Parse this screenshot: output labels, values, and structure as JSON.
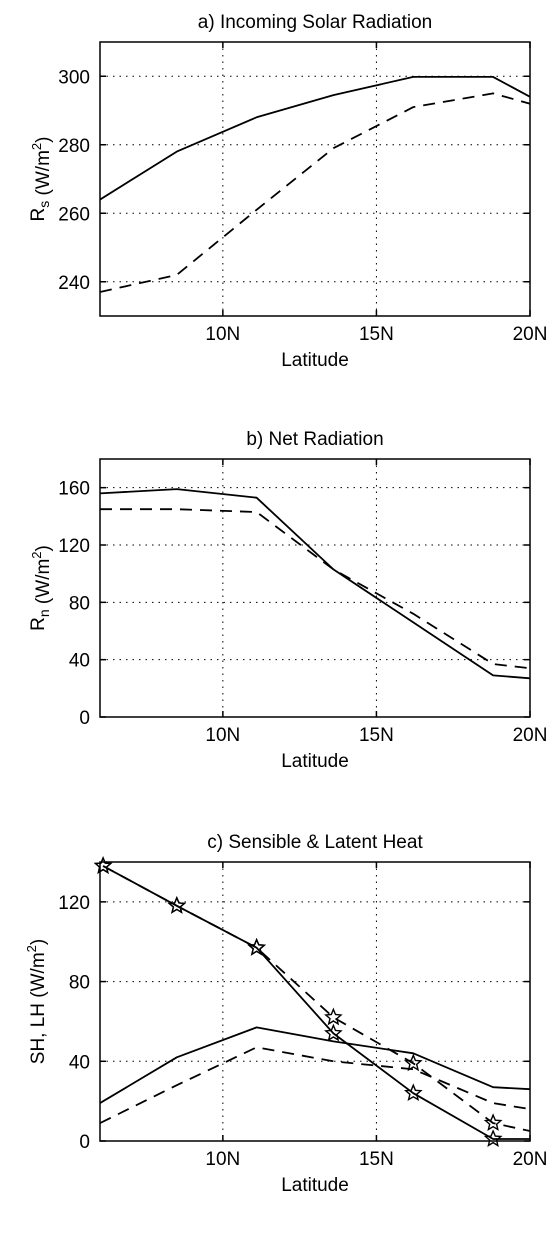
{
  "chart_data": [
    {
      "id": "a",
      "type": "line",
      "title": "a)  Incoming Solar Radiation",
      "xlabel": "Latitude",
      "ylabel": {
        "main": "R",
        "sub": "s",
        "pre": " (W/m",
        "sup": "2",
        "post": ")"
      },
      "xlim": [
        6,
        20
      ],
      "ylim": [
        230,
        310
      ],
      "xticks": [
        10,
        15,
        20
      ],
      "xtick_labels": [
        "10N",
        "15N",
        "20N"
      ],
      "yticks": [
        240,
        260,
        280,
        300
      ],
      "yticks_labels": [
        "240",
        "260",
        "280",
        "300"
      ],
      "grid": true,
      "series": [
        {
          "style": "solid",
          "x": [
            6,
            8.5,
            11.1,
            13.6,
            16.2,
            18.8,
            20
          ],
          "y": [
            264,
            278,
            288,
            294.5,
            299.8,
            299.8,
            294
          ]
        },
        {
          "style": "dashed",
          "x": [
            6,
            8.5,
            11.1,
            13.6,
            16.2,
            18.8,
            20
          ],
          "y": [
            237,
            242,
            261,
            279,
            291,
            295,
            292
          ]
        }
      ]
    },
    {
      "id": "b",
      "type": "line",
      "title": "b)  Net Radiation",
      "xlabel": "Latitude",
      "ylabel": {
        "main": "R",
        "sub": "n",
        "pre": " (W/m",
        "sup": "2",
        "post": ")"
      },
      "xlim": [
        6,
        20
      ],
      "ylim": [
        0,
        180
      ],
      "xticks": [
        10,
        15,
        20
      ],
      "xtick_labels": [
        "10N",
        "15N",
        "20N"
      ],
      "yticks": [
        0,
        40,
        80,
        120,
        160
      ],
      "yticks_labels": [
        "0",
        "40",
        "80",
        "120",
        "160"
      ],
      "grid": true,
      "series": [
        {
          "style": "solid",
          "x": [
            6,
            8.5,
            11.1,
            13.6,
            16.2,
            18.8,
            20
          ],
          "y": [
            156,
            159,
            153,
            103,
            66,
            29,
            27
          ]
        },
        {
          "style": "dashed",
          "x": [
            6,
            8.5,
            11.1,
            13.6,
            16.2,
            18.8,
            20
          ],
          "y": [
            145,
            145,
            143,
            103,
            72,
            37,
            34
          ]
        }
      ]
    },
    {
      "id": "c",
      "type": "line",
      "title": "c)  Sensible & Latent Heat",
      "xlabel": "Latitude",
      "ylabel": {
        "main": "SH, LH",
        "sub": "",
        "pre": " (W/m",
        "sup": "2",
        "post": ")"
      },
      "xlim": [
        6,
        20
      ],
      "ylim": [
        0,
        140
      ],
      "xticks": [
        10,
        15,
        20
      ],
      "xtick_labels": [
        "10N",
        "15N",
        "20N"
      ],
      "yticks": [
        0,
        40,
        80,
        120
      ],
      "yticks_labels": [
        "0",
        "40",
        "80",
        "120"
      ],
      "grid": true,
      "series": [
        {
          "style": "solid",
          "markers": true,
          "x": [
            6.1,
            8.5,
            11.1,
            13.6,
            16.2,
            18.8,
            20
          ],
          "y": [
            138,
            118,
            97,
            54,
            24,
            1,
            1
          ]
        },
        {
          "style": "dashed",
          "markers": true,
          "x": [
            6.1,
            8.5,
            11.1,
            13.6,
            16.2,
            18.8,
            20
          ],
          "y": [
            138,
            118,
            97,
            62,
            39,
            9,
            5
          ]
        },
        {
          "style": "solid",
          "x": [
            6,
            8.5,
            11.1,
            13.6,
            16.2,
            18.8,
            20
          ],
          "y": [
            19,
            42,
            57,
            50,
            44,
            27,
            26
          ]
        },
        {
          "style": "dashed",
          "x": [
            6,
            8.5,
            11.1,
            13.6,
            16.2,
            18.8,
            20
          ],
          "y": [
            9,
            28,
            47,
            40,
            36,
            19,
            16
          ]
        }
      ]
    }
  ]
}
